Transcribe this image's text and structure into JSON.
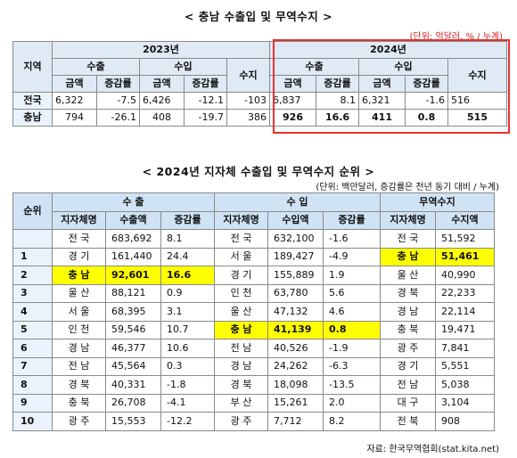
{
  "table1": {
    "title": "< 충남 수출입 및 무역수지 >",
    "unit": "(단위: 억달러, % / 누계)",
    "h_region": "지역",
    "h_2023": "2023년",
    "h_2024": "2024년",
    "h_export": "수출",
    "h_import": "수입",
    "h_balance": "수지",
    "h_amount": "금액",
    "h_rate": "증감률",
    "rows": [
      {
        "region": "전국",
        "v": [
          "6,322",
          "-7.5",
          "6,426",
          "-12.1",
          "-103",
          "6,837",
          "8.1",
          "6,321",
          "-1.6",
          "516"
        ]
      },
      {
        "region": "충남",
        "v": [
          "794",
          "-26.1",
          "408",
          "-19.7",
          "386",
          "926",
          "16.6",
          "411",
          "0.8",
          "515"
        ]
      }
    ]
  },
  "table2": {
    "title": "< 2024년 지자체 수출입 및 무역수지 순위 >",
    "unit": "(단위: 백만달러, 증감률은 전년 동기 대비 / 누계)",
    "h_rank": "순위",
    "h_export": "수   출",
    "h_import": "수   입",
    "h_balance": "무역수지",
    "h_region": "지자체명",
    "h_export_amt": "수출액",
    "h_import_amt": "수입액",
    "h_rate": "증감률",
    "h_balance_amt": "수지액",
    "total": {
      "e_name": "전 국",
      "e_amt": "683,692",
      "e_rate": "8.1",
      "i_name": "전 국",
      "i_amt": "632,100",
      "i_rate": "-1.6",
      "b_name": "전 국",
      "b_amt": "51,592"
    },
    "rows": [
      {
        "rank": "1",
        "e_name": "경 기",
        "e_amt": "161,440",
        "e_rate": "24.4",
        "i_name": "서 울",
        "i_amt": "189,427",
        "i_rate": "-4.9",
        "b_name": "충 남",
        "b_amt": "51,461"
      },
      {
        "rank": "2",
        "e_name": "충 남",
        "e_amt": "92,601",
        "e_rate": "16.6",
        "i_name": "경 기",
        "i_amt": "155,889",
        "i_rate": "1.9",
        "b_name": "울 산",
        "b_amt": "40,990"
      },
      {
        "rank": "3",
        "e_name": "울 산",
        "e_amt": "88,121",
        "e_rate": "0.9",
        "i_name": "인 천",
        "i_amt": "63,780",
        "i_rate": "5.6",
        "b_name": "경 북",
        "b_amt": "22,233"
      },
      {
        "rank": "4",
        "e_name": "서 울",
        "e_amt": "68,395",
        "e_rate": "3.1",
        "i_name": "울 산",
        "i_amt": "47,132",
        "i_rate": "4.6",
        "b_name": "경 남",
        "b_amt": "22,114"
      },
      {
        "rank": "5",
        "e_name": "인 천",
        "e_amt": "59,546",
        "e_rate": "10.7",
        "i_name": "충 남",
        "i_amt": "41,139",
        "i_rate": "0.8",
        "b_name": "충 북",
        "b_amt": "19,471"
      },
      {
        "rank": "6",
        "e_name": "경 남",
        "e_amt": "46,377",
        "e_rate": "10.6",
        "i_name": "전 남",
        "i_amt": "40,526",
        "i_rate": "-1.9",
        "b_name": "광 주",
        "b_amt": "7,841"
      },
      {
        "rank": "7",
        "e_name": "전 남",
        "e_amt": "45,564",
        "e_rate": "0.3",
        "i_name": "경 남",
        "i_amt": "24,262",
        "i_rate": "-6.3",
        "b_name": "경 기",
        "b_amt": "5,551"
      },
      {
        "rank": "8",
        "e_name": "경 북",
        "e_amt": "40,331",
        "e_rate": "-1.8",
        "i_name": "경 북",
        "i_amt": "18,098",
        "i_rate": "-13.5",
        "b_name": "전 남",
        "b_amt": "5,038"
      },
      {
        "rank": "9",
        "e_name": "충 북",
        "e_amt": "26,708",
        "e_rate": "-4.1",
        "i_name": "부 산",
        "i_amt": "15,261",
        "i_rate": "2.0",
        "b_name": "대 구",
        "b_amt": "3,104"
      },
      {
        "rank": "10",
        "e_name": "광 주",
        "e_amt": "15,553",
        "e_rate": "-12.2",
        "i_name": "광 주",
        "i_amt": "7,712",
        "i_rate": "8.2",
        "b_name": "전 북",
        "b_amt": "908"
      }
    ],
    "source": "자료: 한국무역협회(stat.kita.net)"
  },
  "colors": {
    "header_bg": "#dfeaf5",
    "highlight": "#ffff00",
    "box": "#e63232"
  }
}
